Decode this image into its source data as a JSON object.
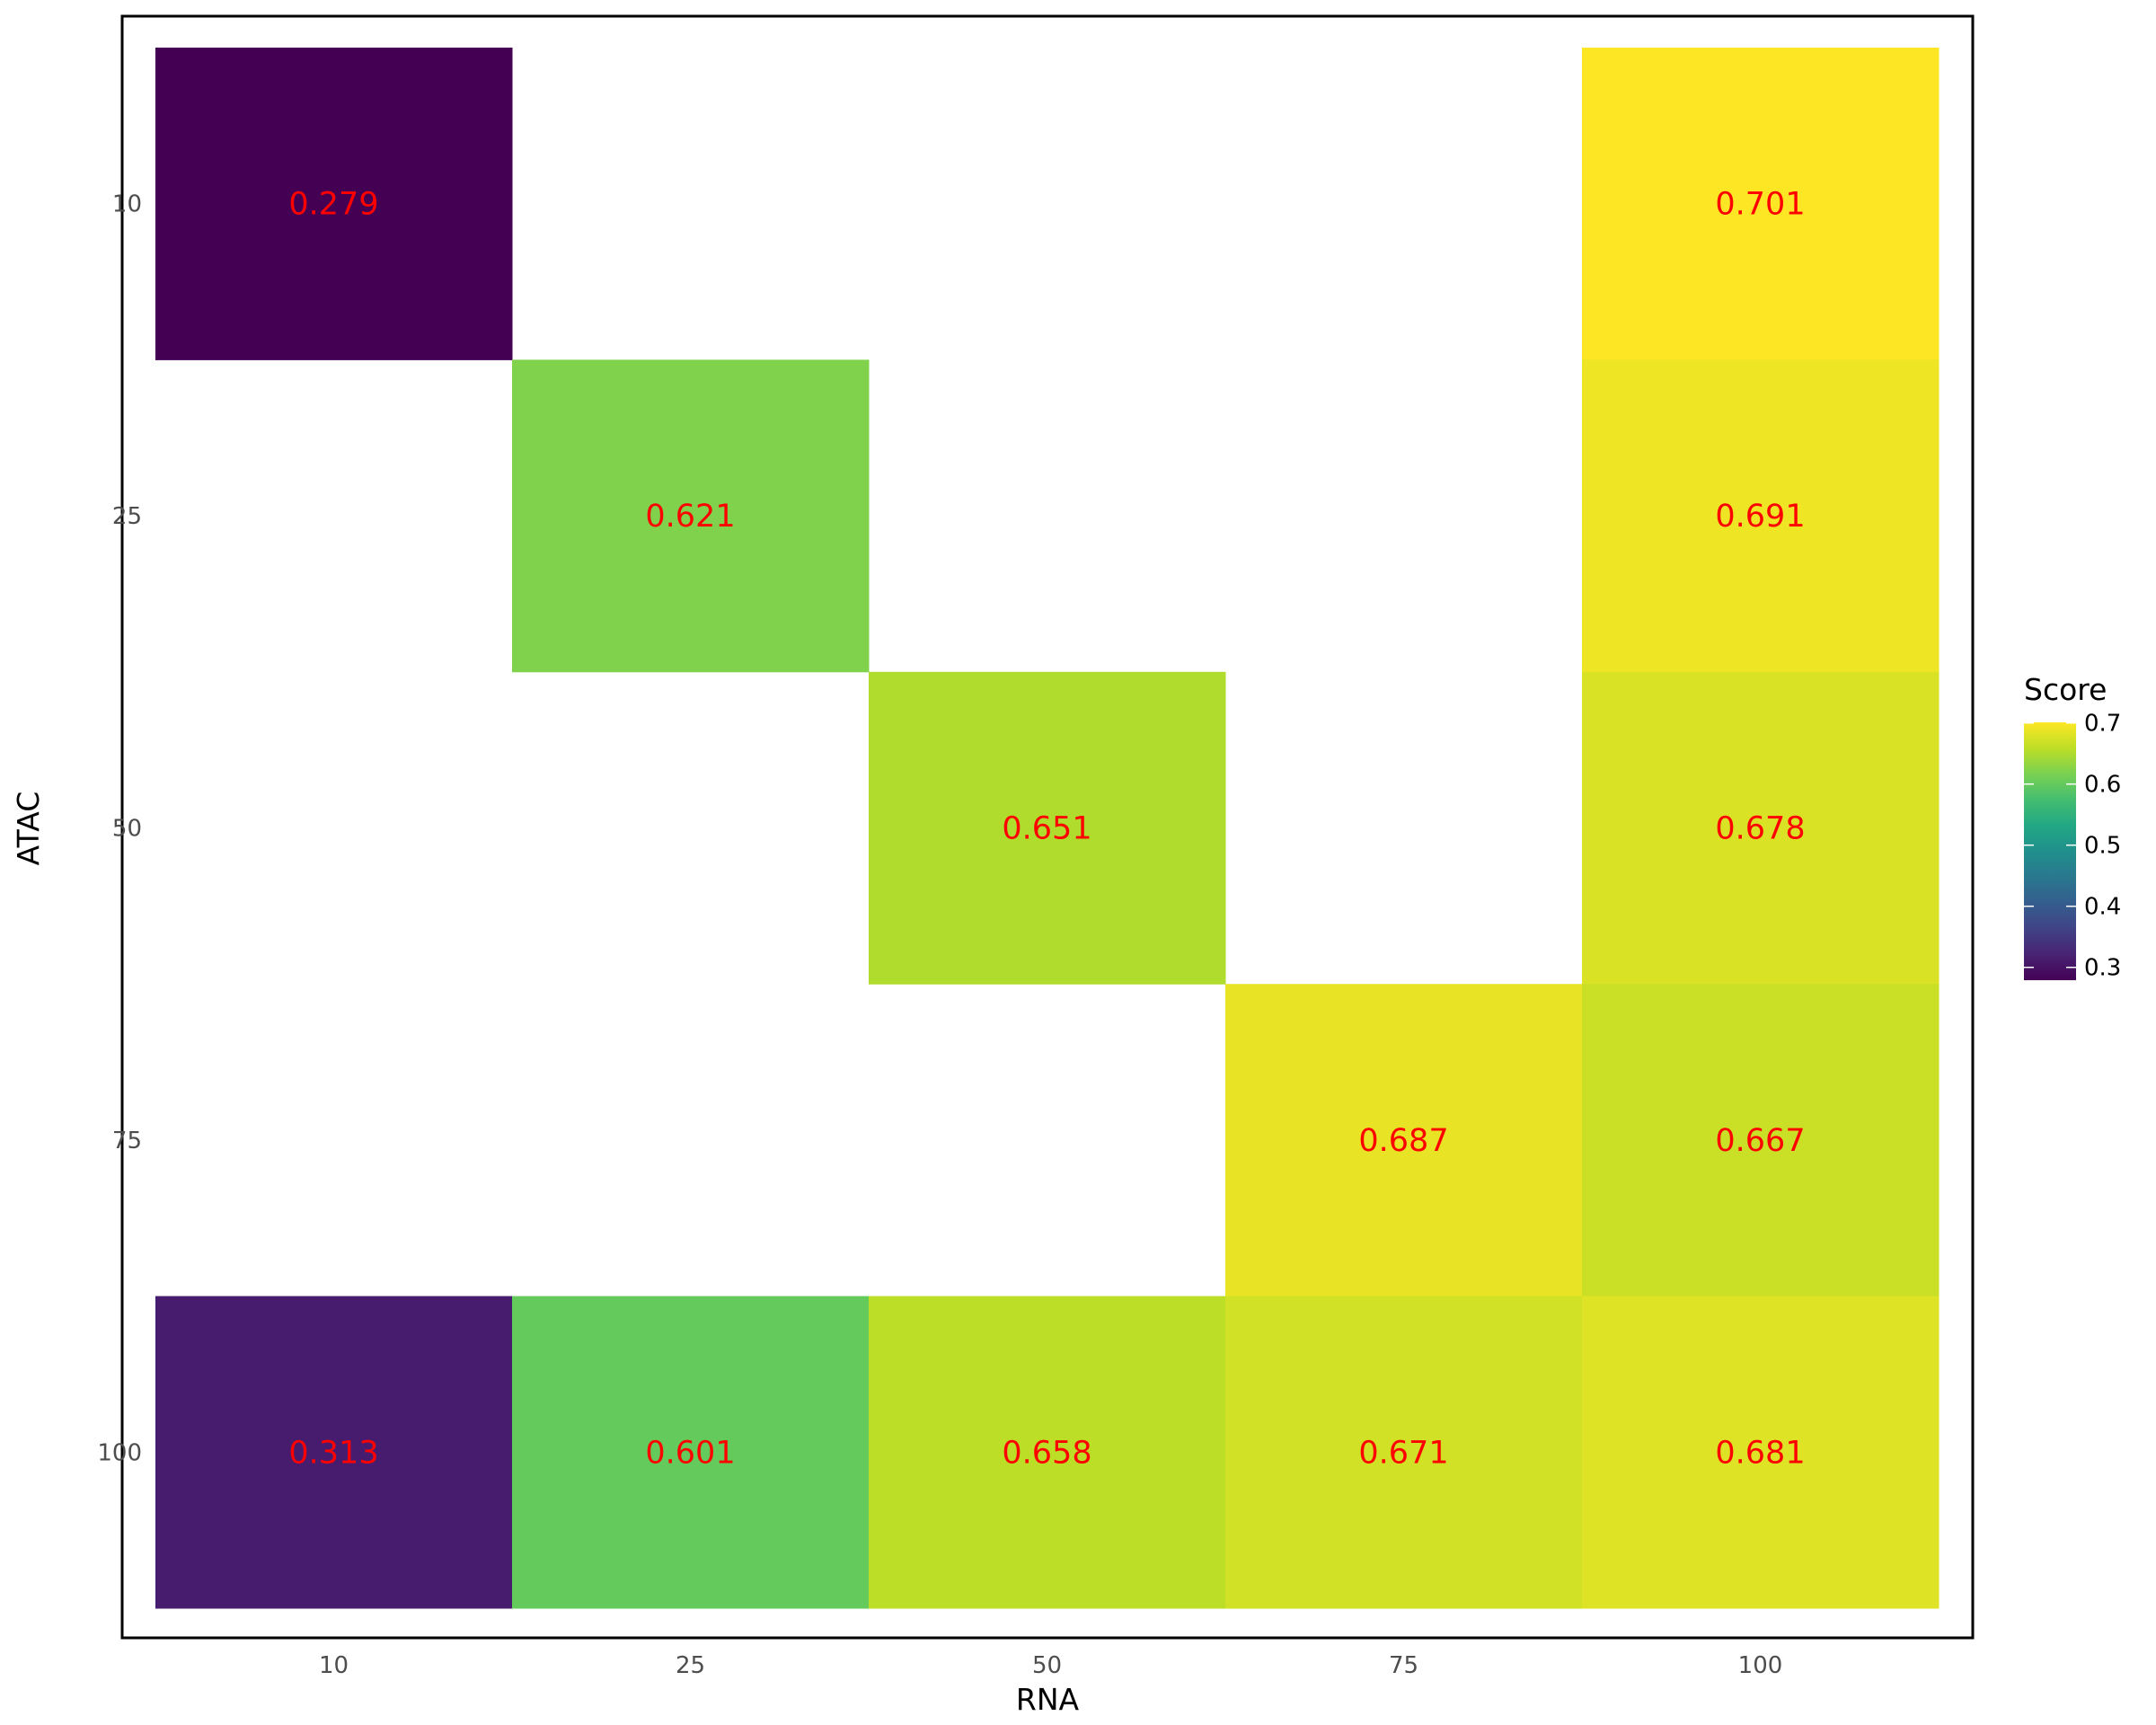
{
  "chart_data": {
    "type": "heatmap",
    "xlabel": "RNA",
    "ylabel": "ATAC",
    "x_categories": [
      "10",
      "25",
      "50",
      "75",
      "100"
    ],
    "y_categories": [
      "10",
      "25",
      "50",
      "75",
      "100"
    ],
    "cells": [
      {
        "x": "10",
        "y": "10",
        "value": 0.279,
        "label": "0.279"
      },
      {
        "x": "100",
        "y": "10",
        "value": 0.701,
        "label": "0.701"
      },
      {
        "x": "25",
        "y": "25",
        "value": 0.621,
        "label": "0.621"
      },
      {
        "x": "100",
        "y": "25",
        "value": 0.691,
        "label": "0.691"
      },
      {
        "x": "50",
        "y": "50",
        "value": 0.651,
        "label": "0.651"
      },
      {
        "x": "100",
        "y": "50",
        "value": 0.678,
        "label": "0.678"
      },
      {
        "x": "75",
        "y": "75",
        "value": 0.687,
        "label": "0.687"
      },
      {
        "x": "100",
        "y": "75",
        "value": 0.667,
        "label": "0.667"
      },
      {
        "x": "10",
        "y": "100",
        "value": 0.313,
        "label": "0.313"
      },
      {
        "x": "25",
        "y": "100",
        "value": 0.601,
        "label": "0.601"
      },
      {
        "x": "50",
        "y": "100",
        "value": 0.658,
        "label": "0.658"
      },
      {
        "x": "75",
        "y": "100",
        "value": 0.671,
        "label": "0.671"
      },
      {
        "x": "100",
        "y": "100",
        "value": 0.681,
        "label": "0.681"
      }
    ],
    "legend": {
      "title": "Score",
      "position": "right",
      "min": 0.279,
      "max": 0.701,
      "ticks": [
        0.3,
        0.4,
        0.5,
        0.6,
        0.7
      ],
      "tick_labels": [
        "0.3",
        "0.4",
        "0.5",
        "0.6",
        "0.7"
      ],
      "colormap": "viridis"
    },
    "label_color": "#ff0000",
    "grid": false,
    "panel_border": true
  }
}
